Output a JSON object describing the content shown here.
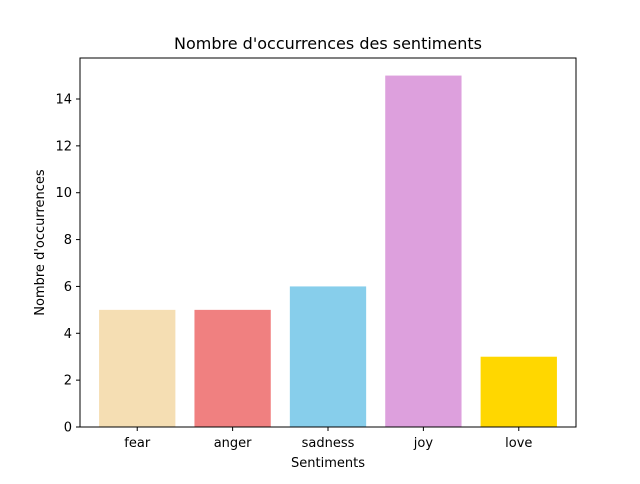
{
  "chart_data": {
    "type": "bar",
    "title": "Nombre d'occurrences des sentiments",
    "xlabel": "Sentiments",
    "ylabel": "Nombre d'occurrences",
    "categories": [
      "fear",
      "anger",
      "sadness",
      "joy",
      "love"
    ],
    "values": [
      5,
      5,
      6,
      15,
      3
    ],
    "colors": [
      "#f5deb3",
      "#f08080",
      "#87ceeb",
      "#dda0dd",
      "#ffd700"
    ],
    "ylim": [
      0,
      15.75
    ],
    "yticks": [
      0,
      2,
      4,
      6,
      8,
      10,
      12,
      14
    ],
    "grid": false,
    "legend": "none"
  }
}
